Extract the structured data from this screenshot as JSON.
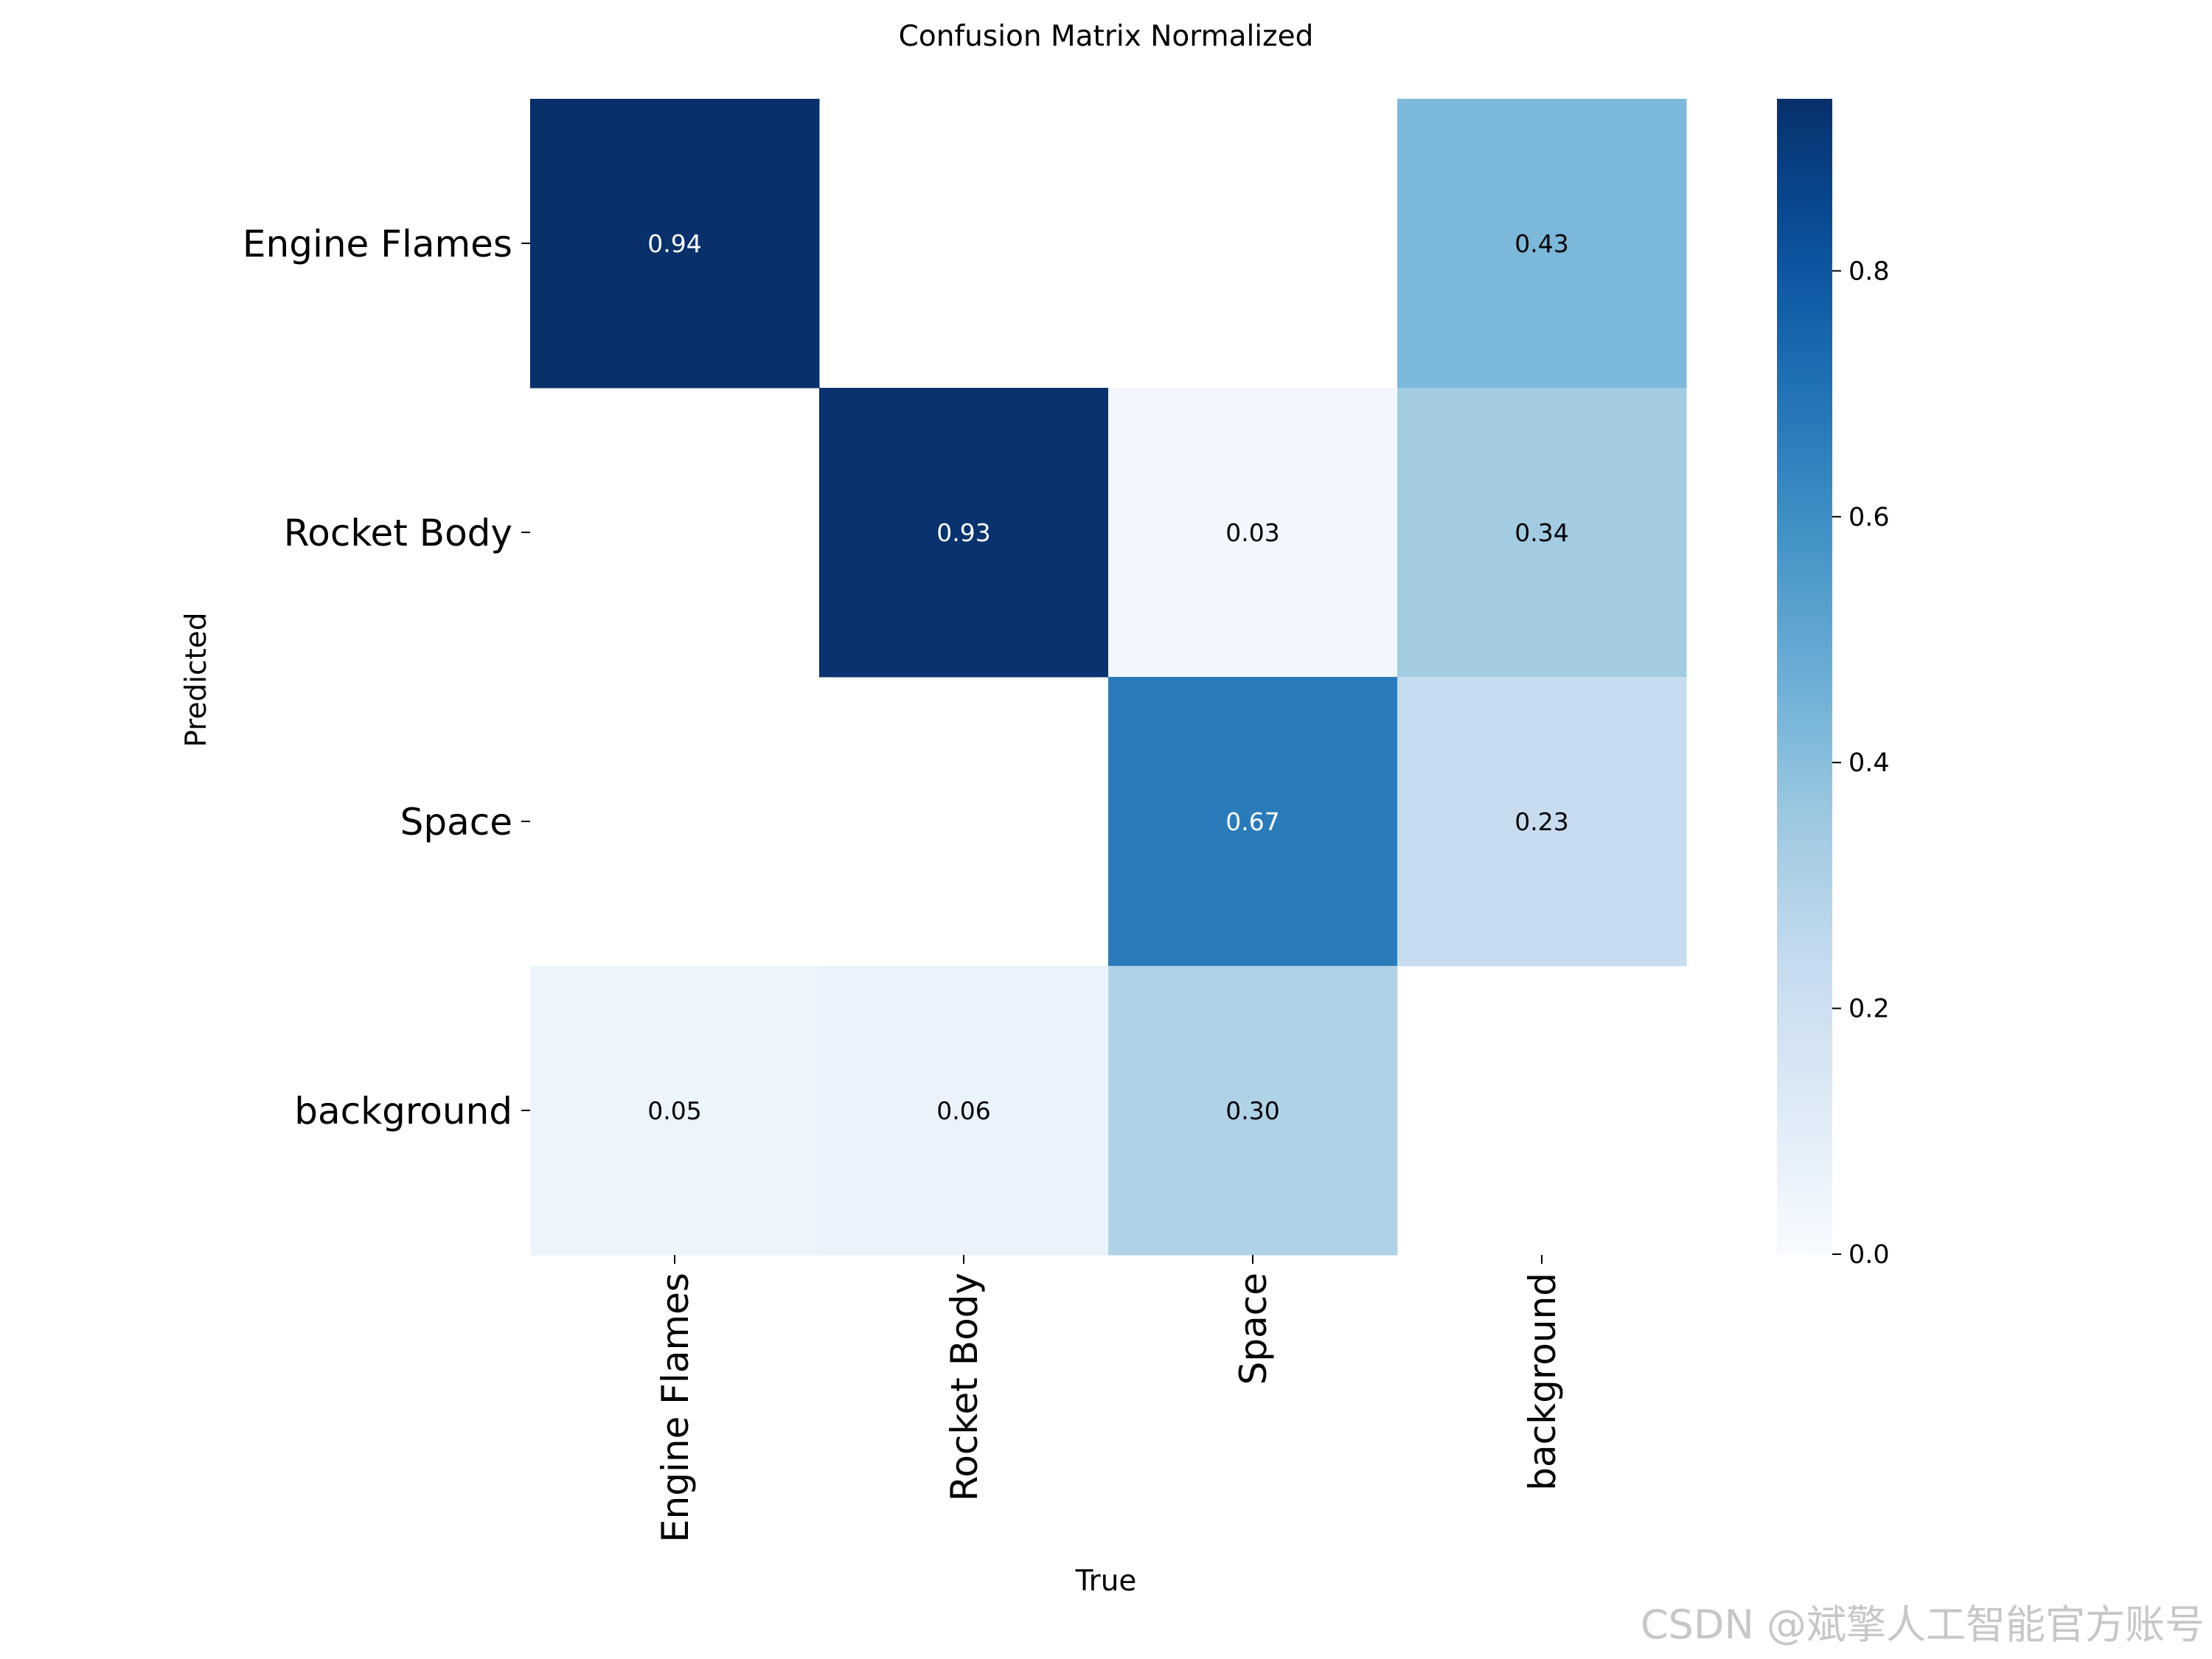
{
  "watermark": "CSDN @斌擎人工智能官方账号",
  "chart_data": {
    "type": "heatmap",
    "title": "Confusion Matrix Normalized",
    "xlabel": "True",
    "ylabel": "Predicted",
    "x_categories": [
      "Engine Flames",
      "Rocket Body",
      "Space",
      "background"
    ],
    "y_categories": [
      "Engine Flames",
      "Rocket Body",
      "Space",
      "background"
    ],
    "values": [
      [
        0.94,
        null,
        null,
        0.43
      ],
      [
        null,
        0.93,
        0.03,
        0.34
      ],
      [
        null,
        null,
        0.67,
        0.23
      ],
      [
        0.05,
        0.06,
        0.3,
        null
      ]
    ],
    "cell_labels": [
      [
        "0.94",
        "",
        "",
        "0.43"
      ],
      [
        "",
        "0.93",
        "0.03",
        "0.34"
      ],
      [
        "",
        "",
        "0.67",
        "0.23"
      ],
      [
        "0.05",
        "0.06",
        "0.30",
        ""
      ]
    ],
    "colorbar": {
      "colormap": "Blues",
      "range": [
        0,
        0.94
      ],
      "ticks": [
        0.0,
        0.2,
        0.4,
        0.6,
        0.8
      ],
      "tick_labels": [
        "0.0",
        "0.2",
        "0.4",
        "0.6",
        "0.8"
      ]
    }
  }
}
